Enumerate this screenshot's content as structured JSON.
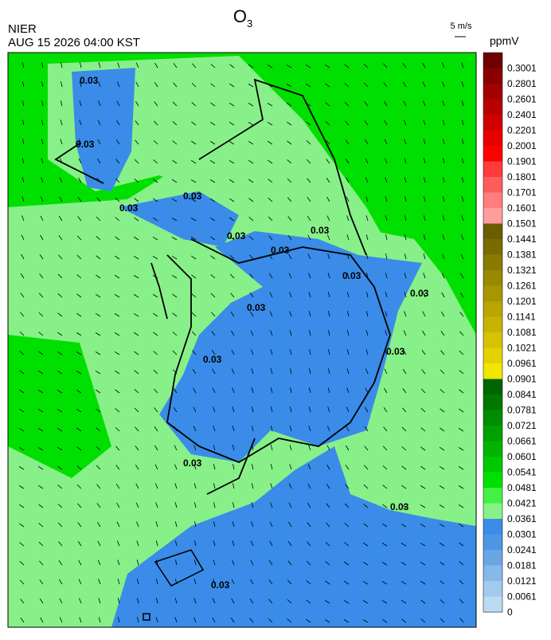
{
  "header": {
    "title_main": "O",
    "title_sub": "3",
    "agency": "NIER",
    "datetime": "AUG 15 2026 04:00 KST",
    "wind_scale": "5 m/s",
    "unit": "ppmV"
  },
  "colorbar": {
    "labels": [
      "0.3001",
      "0.2801",
      "0.2601",
      "0.2401",
      "0.2201",
      "0.2001",
      "0.1901",
      "0.1801",
      "0.1701",
      "0.1601",
      "0.1501",
      "0.1441",
      "0.1381",
      "0.1321",
      "0.1261",
      "0.1201",
      "0.1141",
      "0.1081",
      "0.1021",
      "0.0961",
      "0.0901",
      "0.0841",
      "0.0781",
      "0.0721",
      "0.0661",
      "0.0601",
      "0.0541",
      "0.0481",
      "0.0421",
      "0.0361",
      "0.0301",
      "0.0241",
      "0.0181",
      "0.0121",
      "0.0061",
      "0"
    ],
    "colors": [
      "#6e0000",
      "#8a0000",
      "#a30000",
      "#b90000",
      "#d10000",
      "#e80000",
      "#ff0000",
      "#ff3a3a",
      "#ff5c5c",
      "#ff7d7d",
      "#ff9d9d",
      "#6b5e00",
      "#7a6b00",
      "#8a7a00",
      "#998800",
      "#a89600",
      "#b8a500",
      "#c7b300",
      "#d6c200",
      "#e5d000",
      "#f0e600",
      "#006400",
      "#007800",
      "#008c00",
      "#00a000",
      "#00b400",
      "#00c800",
      "#00e000",
      "#44f044",
      "#88f088",
      "#3a8ce8",
      "#4e96e4",
      "#6aa6e6",
      "#86b8ea",
      "#a2caee",
      "#bcdaf2"
    ]
  },
  "map": {
    "contour_labels": [
      "0.03",
      "0.03",
      "0.03",
      "0.03",
      "0.03",
      "0.03",
      "0.03",
      "0.03",
      "0.03",
      "0.03",
      "0.03",
      "0.03",
      "0.03",
      "0.03",
      "0.03"
    ]
  }
}
